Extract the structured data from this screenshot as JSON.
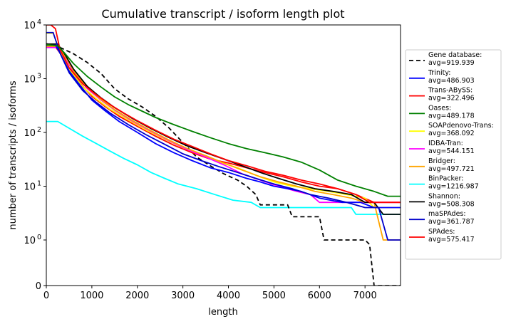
{
  "chart_data": {
    "type": "line",
    "title": "Cumulative transcript / isoform length plot",
    "xlabel": "length",
    "ylabel": "number of transcripts / isoforms",
    "xscale": "linear",
    "yscale": "symlog",
    "xlim": [
      0,
      7780
    ],
    "ylim": [
      0,
      10000
    ],
    "xticks": [
      0,
      1000,
      2000,
      3000,
      4000,
      5000,
      6000,
      7000
    ],
    "xtick_labels": [
      "0",
      "1000",
      "2000",
      "3000",
      "4000",
      "5000",
      "6000",
      "7000"
    ],
    "yticks": [
      0,
      1,
      10,
      100,
      1000,
      10000
    ],
    "ytick_labels": [
      {
        "base": "0",
        "exp": ""
      },
      {
        "base": "10",
        "exp": "0"
      },
      {
        "base": "10",
        "exp": "1"
      },
      {
        "base": "10",
        "exp": "2"
      },
      {
        "base": "10",
        "exp": "3"
      },
      {
        "base": "10",
        "exp": "4"
      }
    ],
    "grid": false,
    "legend_position": "right-outside",
    "series": [
      {
        "name": "Gene database:",
        "avg": "avg=919.939",
        "color": "#000000",
        "dashed": true,
        "x": [
          0,
          300,
          600,
          900,
          1200,
          1500,
          1800,
          2100,
          2400,
          2700,
          3000,
          3300,
          3600,
          3900,
          4200,
          4400,
          4600,
          4700,
          4900,
          5300,
          5400,
          6000,
          6100,
          7000,
          7100,
          7200,
          7780
        ],
        "y": [
          4500,
          3800,
          2900,
          2000,
          1250,
          650,
          420,
          300,
          200,
          120,
          65,
          35,
          24,
          17,
          13,
          10,
          7,
          4.5,
          4.5,
          4.5,
          2.7,
          2.7,
          1,
          1,
          0.9,
          0,
          0
        ]
      },
      {
        "name": "Trinity:",
        "avg": "avg=486.903",
        "color": "#0000ff",
        "dashed": false,
        "x": [
          0,
          200,
          300,
          500,
          800,
          1000,
          1300,
          1600,
          2000,
          2400,
          2800,
          3200,
          3600,
          4000,
          4400,
          4700,
          5000,
          5300,
          5600,
          6000,
          6500,
          6900,
          7200,
          7780
        ],
        "y": [
          4200,
          4200,
          3000,
          1400,
          650,
          400,
          250,
          160,
          100,
          62,
          42,
          30,
          22,
          18,
          14,
          12,
          10,
          9,
          8,
          6,
          5,
          5,
          4,
          4
        ]
      },
      {
        "name": "Trans-ABySS:",
        "avg": "avg=322.496",
        "color": "#ff0000",
        "dashed": false,
        "x": [
          0,
          200,
          300,
          500,
          800,
          1000,
          1300,
          1600,
          2000,
          2400,
          2800,
          3200,
          3600,
          4000,
          4400,
          4800,
          5200,
          5600,
          6000,
          6400,
          6800,
          7200,
          7780
        ],
        "y": [
          3900,
          3900,
          3000,
          1500,
          720,
          470,
          300,
          200,
          130,
          85,
          58,
          42,
          32,
          27,
          22,
          18,
          15,
          12,
          10,
          9,
          7,
          5,
          5
        ]
      },
      {
        "name": "Oases:",
        "avg": "avg=489.178",
        "color": "#008000",
        "dashed": false,
        "x": [
          0,
          250,
          400,
          600,
          900,
          1200,
          1500,
          1800,
          2100,
          2400,
          2800,
          3200,
          3600,
          4000,
          4400,
          4800,
          5200,
          5600,
          6000,
          6400,
          6800,
          7200,
          7500,
          7780
        ],
        "y": [
          4300,
          4100,
          3000,
          1900,
          1100,
          700,
          460,
          330,
          250,
          190,
          140,
          105,
          80,
          62,
          50,
          42,
          35,
          28,
          20,
          13,
          10,
          8,
          6.5,
          6.5
        ]
      },
      {
        "name": "SOAPdenovo-Trans:",
        "avg": "avg=368.092",
        "color": "#ffff00",
        "dashed": false,
        "x": [
          0,
          150,
          300,
          500,
          800,
          1100,
          1400,
          1800,
          2200,
          2600,
          3000,
          3400,
          3800,
          4200,
          4600,
          5000,
          5400,
          5800,
          6200,
          6600,
          7000,
          7200,
          7780
        ],
        "y": [
          7000,
          7000,
          3200,
          1500,
          700,
          420,
          270,
          170,
          110,
          75,
          52,
          38,
          28,
          22,
          16,
          12,
          10,
          9,
          8,
          7,
          6,
          4,
          4
        ]
      },
      {
        "name": "IDBA-Tran:",
        "avg": "avg=544.151",
        "color": "#ff00ff",
        "dashed": false,
        "x": [
          0,
          250,
          400,
          600,
          900,
          1200,
          1500,
          1900,
          2300,
          2700,
          3100,
          3500,
          3900,
          4300,
          4700,
          5100,
          5500,
          5800,
          6000,
          6200,
          6600,
          7000,
          7780
        ],
        "y": [
          3800,
          3800,
          2600,
          1300,
          650,
          400,
          260,
          160,
          105,
          70,
          48,
          35,
          25,
          17,
          13,
          10,
          8,
          7,
          5,
          5,
          5,
          5,
          5
        ]
      },
      {
        "name": "Bridger:",
        "avg": "avg=497.721",
        "color": "#ffa500",
        "dashed": false,
        "x": [
          0,
          250,
          400,
          600,
          900,
          1200,
          1500,
          1900,
          2300,
          2700,
          3100,
          3500,
          3900,
          4300,
          4700,
          5100,
          5500,
          5900,
          6300,
          6700,
          7000,
          7200,
          7400,
          7500,
          7780
        ],
        "y": [
          4000,
          4000,
          2700,
          1400,
          680,
          410,
          265,
          165,
          108,
          72,
          50,
          37,
          27,
          20,
          15,
          12,
          10,
          8,
          7,
          6,
          5,
          5,
          1,
          1,
          1
        ]
      },
      {
        "name": "BinPacker:",
        "avg": "avg=1216.987",
        "color": "#00ffff",
        "dashed": false,
        "x": [
          0,
          250,
          500,
          800,
          1100,
          1400,
          1700,
          2000,
          2300,
          2600,
          2900,
          3300,
          3700,
          4100,
          4500,
          4700,
          5200,
          5700,
          6200,
          6700,
          6800,
          7200,
          7780
        ],
        "y": [
          160,
          160,
          120,
          85,
          62,
          45,
          33,
          25,
          18,
          14,
          11,
          9,
          7,
          5.5,
          5,
          4,
          4,
          4,
          4,
          4,
          3,
          3,
          3
        ]
      },
      {
        "name": "Shannon:",
        "avg": "avg=508.308",
        "color": "#000000",
        "dashed": false,
        "x": [
          0,
          250,
          400,
          600,
          900,
          1200,
          1500,
          1900,
          2300,
          2700,
          3100,
          3500,
          3900,
          4300,
          4700,
          5100,
          5500,
          5900,
          6300,
          6700,
          7000,
          7200,
          7400,
          7780
        ],
        "y": [
          4400,
          4400,
          2900,
          1500,
          720,
          440,
          290,
          180,
          118,
          80,
          56,
          42,
          32,
          24,
          18,
          14,
          11,
          9,
          8,
          7,
          5,
          5,
          3,
          3
        ]
      },
      {
        "name": "maSPAdes:",
        "avg": "avg=361.787",
        "color": "#0000cc",
        "dashed": false,
        "x": [
          0,
          150,
          300,
          500,
          800,
          1100,
          1400,
          1800,
          2200,
          2600,
          3000,
          3400,
          3800,
          4200,
          4600,
          5000,
          5400,
          5800,
          6200,
          6600,
          7000,
          7300,
          7500,
          7780
        ],
        "y": [
          7200,
          7200,
          3000,
          1300,
          600,
          360,
          230,
          140,
          90,
          60,
          40,
          30,
          23,
          18,
          14,
          11,
          9,
          7,
          6,
          5,
          4,
          4,
          1,
          1
        ]
      },
      {
        "name": "SPAdes:",
        "avg": "avg=575.417",
        "color": "#ff0000",
        "dashed": false,
        "x": [
          0,
          100,
          200,
          300,
          500,
          800,
          1100,
          1400,
          1700,
          2000,
          2400,
          2800,
          3200,
          3600,
          4000,
          4400,
          4800,
          5200,
          5600,
          6000,
          6400,
          6800,
          7100,
          7300,
          7780
        ],
        "y": [
          10000,
          10000,
          8500,
          3500,
          1600,
          800,
          500,
          330,
          230,
          165,
          110,
          75,
          55,
          40,
          30,
          24,
          19,
          16,
          13,
          11,
          9,
          7,
          5,
          5,
          5
        ]
      }
    ]
  }
}
